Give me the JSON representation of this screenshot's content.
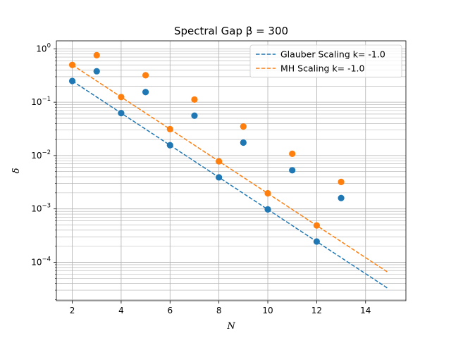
{
  "chart_data": {
    "type": "scatter",
    "title": "Spectral Gap  β =  300",
    "xlabel": "N",
    "ylabel": "δ",
    "xlim": [
      1.35,
      15.65
    ],
    "ylim_log10": [
      -4.72,
      0.15
    ],
    "y_scale": "log",
    "grid": "on (major and minor)",
    "legend_position": "top-right",
    "x_ticks": [
      2,
      4,
      6,
      8,
      10,
      12,
      14
    ],
    "x_tick_labels": [
      "2",
      "4",
      "6",
      "8",
      "10",
      "12",
      "14"
    ],
    "y_ticks": [
      -4,
      -3,
      -2,
      -1,
      0
    ],
    "y_tick_labels": [
      {
        "base": "10",
        "exp": "−4"
      },
      {
        "base": "10",
        "exp": "−3"
      },
      {
        "base": "10",
        "exp": "−2"
      },
      {
        "base": "10",
        "exp": "−1"
      },
      {
        "base": "10",
        "exp": "0"
      }
    ],
    "series": [
      {
        "name": "Glauber",
        "color": "#1f77b4",
        "points": [
          [
            2,
            0.25
          ],
          [
            3,
            0.38
          ],
          [
            4,
            0.0625
          ],
          [
            5,
            0.155
          ],
          [
            6,
            0.0156
          ],
          [
            7,
            0.056
          ],
          [
            8,
            0.0039
          ],
          [
            9,
            0.0175
          ],
          [
            10,
            0.00098
          ],
          [
            11,
            0.0053
          ],
          [
            12,
            0.000245
          ],
          [
            13,
            0.0016
          ]
        ]
      },
      {
        "name": "MH",
        "color": "#ff7f0e",
        "points": [
          [
            2,
            0.5
          ],
          [
            3,
            0.76
          ],
          [
            4,
            0.125
          ],
          [
            5,
            0.32
          ],
          [
            6,
            0.0313
          ],
          [
            7,
            0.112
          ],
          [
            8,
            0.0078
          ],
          [
            9,
            0.035
          ],
          [
            10,
            0.00196
          ],
          [
            11,
            0.0108
          ],
          [
            12,
            0.00049
          ],
          [
            13,
            0.0032
          ]
        ]
      }
    ],
    "fits": [
      {
        "name": "Glauber Scaling k= -1.0",
        "color": "#1f77b4",
        "x_range": [
          2,
          14.9
        ],
        "y_at_2": 0.25,
        "k": -1.0
      },
      {
        "name": "MH Scaling k= -1.0",
        "color": "#ff7f0e",
        "x_range": [
          2,
          14.9
        ],
        "y_at_2": 0.5,
        "k": -1.0
      }
    ]
  }
}
